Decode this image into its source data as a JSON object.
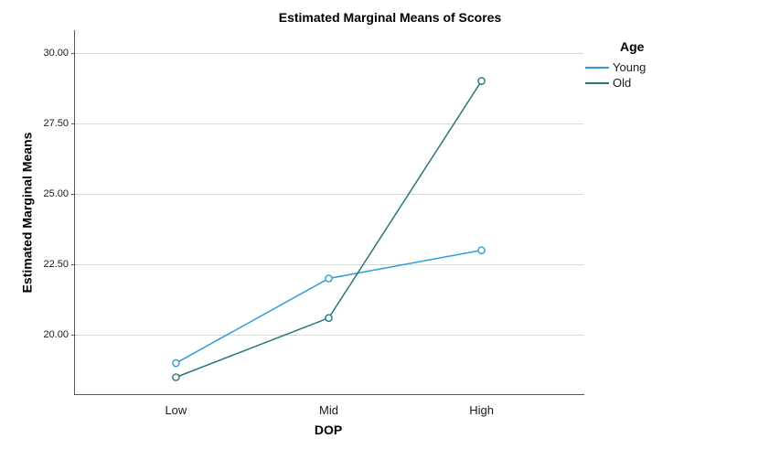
{
  "chart_data": {
    "type": "line",
    "title": "Estimated Marginal Means of Scores",
    "xlabel": "DOP",
    "ylabel": "Estimated Marginal Means",
    "categories": [
      "Low",
      "Mid",
      "High"
    ],
    "series": [
      {
        "name": "Young",
        "color": "#2E9BD8",
        "values": [
          19.0,
          22.0,
          23.0
        ]
      },
      {
        "name": "Old",
        "color": "#26777B",
        "values": [
          18.5,
          20.6,
          29.0
        ]
      }
    ],
    "legend_title": "Age",
    "yticks": [
      20.0,
      22.5,
      25.0,
      27.5,
      30.0
    ],
    "ytick_labels": [
      "20.00",
      "22.50",
      "25.00",
      "27.50",
      "30.00"
    ],
    "ylim": [
      17.9,
      30.8
    ],
    "marker": "open-circle",
    "grid": "horizontal",
    "colors": {
      "axis": "#595959",
      "grid": "#D9D9D9",
      "background": "#FFFFFF"
    }
  }
}
